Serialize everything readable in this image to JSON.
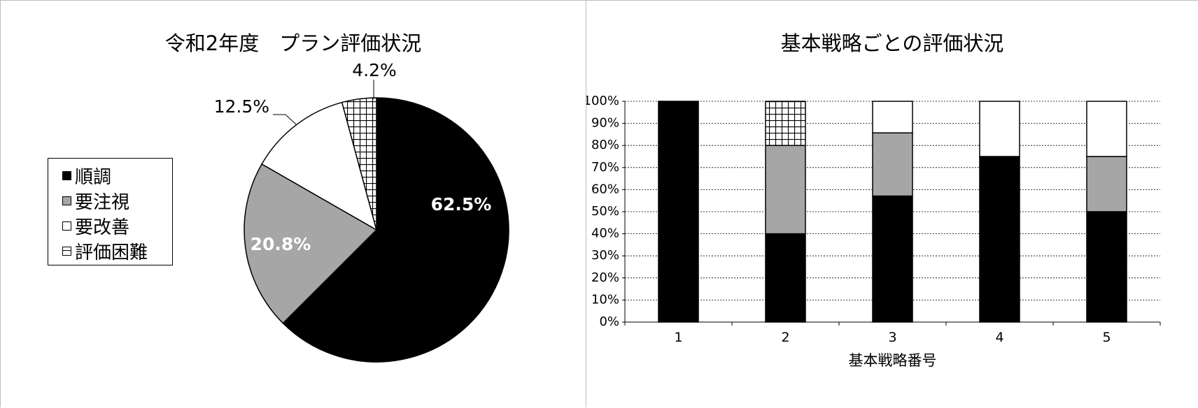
{
  "chart_data": [
    {
      "type": "pie",
      "title": "令和2年度　プラン評価状況",
      "legend": {
        "placement": "left"
      },
      "categories": [
        "順調",
        "要注視",
        "要改善",
        "評価困難"
      ],
      "values": [
        62.5,
        20.8,
        12.5,
        4.2
      ],
      "labels": [
        "62.5%",
        "20.8%",
        "12.5%",
        "4.2%"
      ],
      "colors": [
        "#000000",
        "#a6a6a6",
        "#ffffff",
        "grid-pattern"
      ]
    },
    {
      "type": "bar",
      "stacked": true,
      "title": "基本戦略ごとの評価状況",
      "xlabel": "基本戦略番号",
      "ylabel": "",
      "categories": [
        "1",
        "2",
        "3",
        "4",
        "5"
      ],
      "ylim": [
        0,
        100
      ],
      "yticks": [
        "0%",
        "10%",
        "20%",
        "30%",
        "40%",
        "50%",
        "60%",
        "70%",
        "80%",
        "90%",
        "100%"
      ],
      "grid": true,
      "series": [
        {
          "name": "順調",
          "values": [
            100,
            40,
            57.1,
            75,
            50
          ],
          "color": "#000000"
        },
        {
          "name": "要注視",
          "values": [
            0,
            40,
            28.6,
            0,
            25
          ],
          "color": "#a6a6a6"
        },
        {
          "name": "要改善",
          "values": [
            0,
            0,
            14.3,
            25,
            25
          ],
          "color": "#ffffff"
        },
        {
          "name": "評価困難",
          "values": [
            0,
            20,
            0,
            0,
            0
          ],
          "color": "grid-pattern"
        }
      ]
    }
  ]
}
